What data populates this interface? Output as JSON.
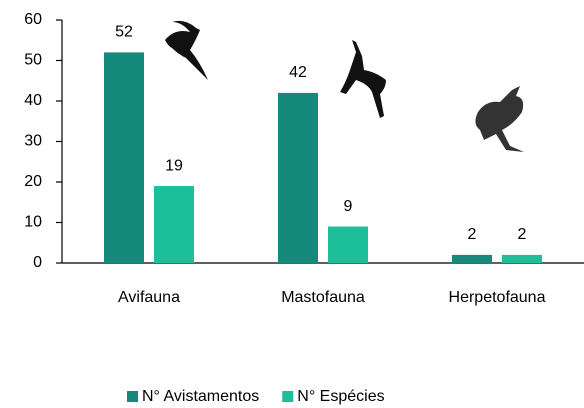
{
  "chart_data": {
    "type": "bar",
    "categories": [
      "Avifauna",
      "Mastofauna",
      "Herpetofauna"
    ],
    "series": [
      {
        "name": "N° Avistamentos",
        "color": "#15897b",
        "values": [
          52,
          42,
          2
        ]
      },
      {
        "name": "N° Espécies",
        "color": "#1dbf98",
        "values": [
          19,
          9,
          2
        ]
      }
    ],
    "ylim": [
      0,
      60
    ],
    "yticks": [
      0,
      10,
      20,
      30,
      40,
      50,
      60
    ],
    "grid": false,
    "legend": "bottom"
  }
}
